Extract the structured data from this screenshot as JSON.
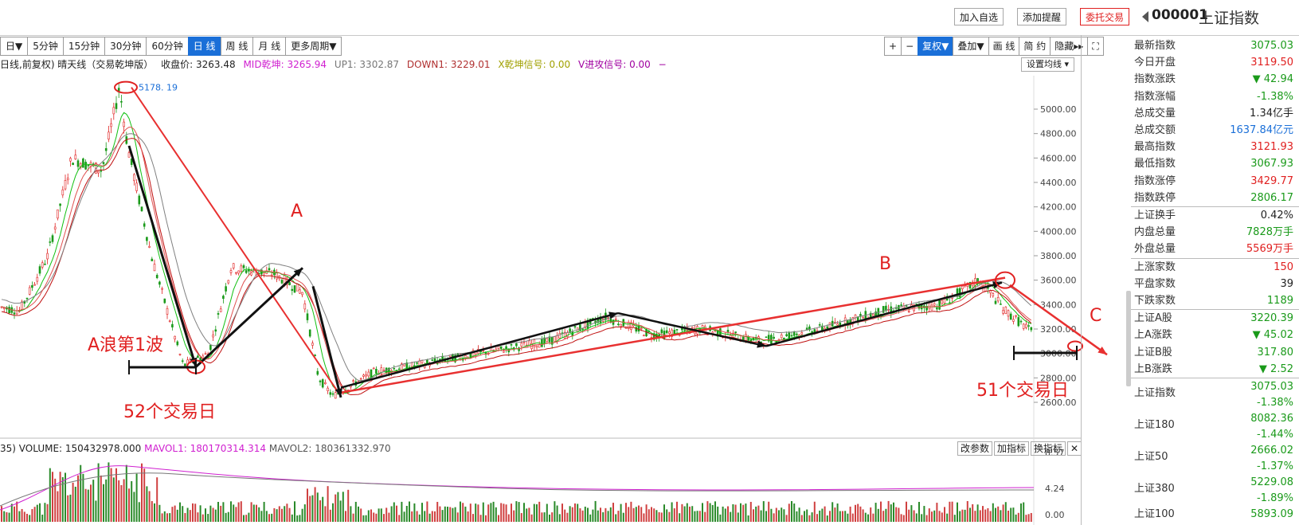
{
  "header": {
    "add_watch": "加入自选",
    "add_alert": "添加提醒",
    "trade": "委托交易",
    "code": "000001",
    "name": "上证指数"
  },
  "periods": [
    "日▼",
    "5分钟",
    "15分钟",
    "30分钟",
    "60分钟",
    "日 线",
    "周 线",
    "月 线",
    "更多周期▼"
  ],
  "period_selected_index": 5,
  "chart_tools": [
    "+",
    "−",
    "复权▼",
    "叠加▼",
    "画 线",
    "简 约",
    "隐藏▸▸",
    "⛶"
  ],
  "chart_tool_selected_index": 2,
  "indicator_line": {
    "title": "日线,前复权) 晴天线（交易乾坤版）",
    "close": "收盘价: 3263.48",
    "mid": "MID乾坤: 3265.94",
    "up1": "UP1: 3302.87",
    "down1": "DOWN1: 3229.01",
    "xsignal": "X乾坤信号: 0.00",
    "vsignal": "V进攻信号: 0.00",
    "dash": "−"
  },
  "set_ma": "设置均线 ▾",
  "price_axis": [
    "5000.00",
    "4800.00",
    "4600.00",
    "4400.00",
    "4200.00",
    "4000.00",
    "3800.00",
    "3600.00",
    "3400.00",
    "3200.00",
    "3000.00",
    "2800.00",
    "2600.00"
  ],
  "peak_label": "5178. 19",
  "annotations": {
    "wave_a1": "A浪第1波",
    "days52": "52个交易日",
    "days51": "51个交易日",
    "a": "A",
    "b": "B",
    "c": "C"
  },
  "volume_line": {
    "prefix": "35)",
    "volume": "VOLUME: 150432978.000",
    "mavol1": "MAVOL1: 180170314.314",
    "mavol2": "MAVOL2: 180361332.970"
  },
  "volume_axis": [
    "8.57",
    "4.24",
    "0.00"
  ],
  "volume_buttons": [
    "改参数",
    "加指标",
    "换指标",
    "✕"
  ],
  "quote_panel": [
    {
      "label": "最新指数",
      "value": "3075.03",
      "color": "#1a9a1a"
    },
    {
      "label": "今日开盘",
      "value": "3119.50",
      "color": "#e02020"
    },
    {
      "label": "指数涨跌",
      "value": "▼ 42.94",
      "color": "#1a9a1a"
    },
    {
      "label": "指数涨幅",
      "value": "-1.38%",
      "color": "#1a9a1a"
    },
    {
      "label": "总成交量",
      "value": "1.34亿手",
      "color": "#222"
    },
    {
      "label": "总成交额",
      "value": "1637.84亿元",
      "color": "#1a6fd8"
    },
    {
      "label": "最高指数",
      "value": "3121.93",
      "color": "#e02020"
    },
    {
      "label": "最低指数",
      "value": "3067.93",
      "color": "#1a9a1a"
    },
    {
      "label": "指数涨停",
      "value": "3429.77",
      "color": "#e02020"
    },
    {
      "label": "指数跌停",
      "value": "2806.17",
      "color": "#1a9a1a"
    },
    {
      "label": "上证换手",
      "value": "0.42%",
      "color": "#222"
    },
    {
      "label": "内盘总量",
      "value": "7828万手",
      "color": "#1a9a1a"
    },
    {
      "label": "外盘总量",
      "value": "5569万手",
      "color": "#e02020"
    },
    {
      "label": "上涨家数",
      "value": "150",
      "color": "#e02020"
    },
    {
      "label": "平盘家数",
      "value": "39",
      "color": "#222"
    },
    {
      "label": "下跌家数",
      "value": "1189",
      "color": "#1a9a1a"
    },
    {
      "label": "上证A股",
      "value": "3220.39",
      "color": "#1a9a1a"
    },
    {
      "label": "上A涨跌",
      "value": "▼ 45.02",
      "color": "#1a9a1a"
    },
    {
      "label": "上证B股",
      "value": "317.80",
      "color": "#1a9a1a"
    },
    {
      "label": "上B涨跌",
      "value": "▼ 2.52",
      "color": "#1a9a1a"
    }
  ],
  "indices_panel": [
    {
      "label": "上证指数",
      "value": "3075.03",
      "pct": "-1.38%"
    },
    {
      "label": "上证180",
      "value": "8082.36",
      "pct": "-1.44%"
    },
    {
      "label": "上证50",
      "value": "2666.02",
      "pct": "-1.37%"
    },
    {
      "label": "上证380",
      "value": "5229.08",
      "pct": "-1.89%"
    },
    {
      "label": "上证100",
      "value": "5893.09",
      "pct": ""
    }
  ],
  "colors": {
    "up": "#e02020",
    "down": "#1a9a1a",
    "accent": "#1a6fd8"
  }
}
